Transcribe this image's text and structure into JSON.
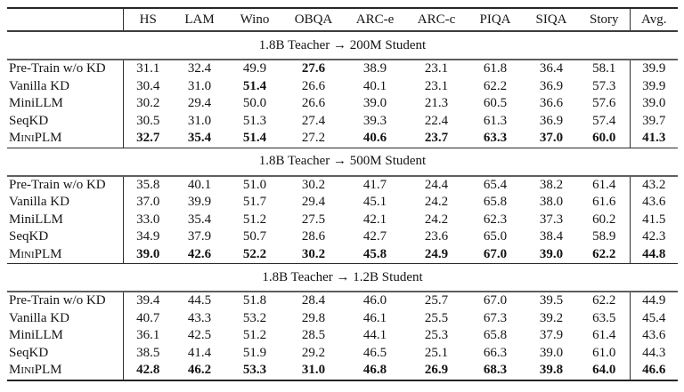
{
  "figure": {
    "kind": "results-table"
  },
  "colors": {
    "text": "#141414",
    "rule_outer": "#262626",
    "rule_header": "#3d3d3d",
    "rule_section_top": "#2b2b2b",
    "rule_section_bottom": "#5e5e5e",
    "vertical_bar": "#2f2f2f",
    "background": "#ffffff"
  },
  "table": {
    "columns": [
      "HS",
      "LAM",
      "Wino",
      "OBQA",
      "ARC-e",
      "ARC-c",
      "PIQA",
      "SIQA",
      "Story",
      "Avg."
    ],
    "sections": [
      {
        "title": "1.8B Teacher → 200M Student",
        "rows": [
          {
            "label": "Pre-Train w/o KD",
            "smallcaps": false,
            "values": [
              "31.1",
              "32.4",
              "49.9",
              "27.6",
              "38.9",
              "23.1",
              "61.8",
              "36.4",
              "58.1",
              "39.9"
            ],
            "bold": [
              false,
              false,
              false,
              true,
              false,
              false,
              false,
              false,
              false,
              false
            ]
          },
          {
            "label": "Vanilla KD",
            "smallcaps": false,
            "values": [
              "30.4",
              "31.0",
              "51.4",
              "26.6",
              "40.1",
              "23.1",
              "62.2",
              "36.9",
              "57.3",
              "39.9"
            ],
            "bold": [
              false,
              false,
              true,
              false,
              false,
              false,
              false,
              false,
              false,
              false
            ]
          },
          {
            "label": "MiniLLM",
            "smallcaps": false,
            "values": [
              "30.2",
              "29.4",
              "50.0",
              "26.6",
              "39.0",
              "21.3",
              "60.5",
              "36.6",
              "57.6",
              "39.0"
            ],
            "bold": [
              false,
              false,
              false,
              false,
              false,
              false,
              false,
              false,
              false,
              false
            ]
          },
          {
            "label": "SeqKD",
            "smallcaps": false,
            "values": [
              "30.5",
              "31.0",
              "51.3",
              "27.4",
              "39.3",
              "22.4",
              "61.3",
              "36.9",
              "57.4",
              "39.7"
            ],
            "bold": [
              false,
              false,
              false,
              false,
              false,
              false,
              false,
              false,
              false,
              false
            ]
          },
          {
            "label": "MiniPLM",
            "smallcaps": true,
            "values": [
              "32.7",
              "35.4",
              "51.4",
              "27.2",
              "40.6",
              "23.7",
              "63.3",
              "37.0",
              "60.0",
              "41.3"
            ],
            "bold": [
              true,
              true,
              true,
              false,
              true,
              true,
              true,
              true,
              true,
              true
            ]
          }
        ]
      },
      {
        "title": "1.8B Teacher → 500M Student",
        "rows": [
          {
            "label": "Pre-Train w/o KD",
            "smallcaps": false,
            "values": [
              "35.8",
              "40.1",
              "51.0",
              "30.2",
              "41.7",
              "24.4",
              "65.4",
              "38.2",
              "61.4",
              "43.2"
            ],
            "bold": [
              false,
              false,
              false,
              false,
              false,
              false,
              false,
              false,
              false,
              false
            ]
          },
          {
            "label": "Vanilla KD",
            "smallcaps": false,
            "values": [
              "37.0",
              "39.9",
              "51.7",
              "29.4",
              "45.1",
              "24.2",
              "65.8",
              "38.0",
              "61.6",
              "43.6"
            ],
            "bold": [
              false,
              false,
              false,
              false,
              false,
              false,
              false,
              false,
              false,
              false
            ]
          },
          {
            "label": "MiniLLM",
            "smallcaps": false,
            "values": [
              "33.0",
              "35.4",
              "51.2",
              "27.5",
              "42.1",
              "24.2",
              "62.3",
              "37.3",
              "60.2",
              "41.5"
            ],
            "bold": [
              false,
              false,
              false,
              false,
              false,
              false,
              false,
              false,
              false,
              false
            ]
          },
          {
            "label": "SeqKD",
            "smallcaps": false,
            "values": [
              "34.9",
              "37.9",
              "50.7",
              "28.6",
              "42.7",
              "23.6",
              "65.0",
              "38.4",
              "58.9",
              "42.3"
            ],
            "bold": [
              false,
              false,
              false,
              false,
              false,
              false,
              false,
              false,
              false,
              false
            ]
          },
          {
            "label": "MiniPLM",
            "smallcaps": true,
            "values": [
              "39.0",
              "42.6",
              "52.2",
              "30.2",
              "45.8",
              "24.9",
              "67.0",
              "39.0",
              "62.2",
              "44.8"
            ],
            "bold": [
              true,
              true,
              true,
              true,
              true,
              true,
              true,
              true,
              true,
              true
            ]
          }
        ]
      },
      {
        "title": "1.8B Teacher → 1.2B Student",
        "rows": [
          {
            "label": "Pre-Train w/o KD",
            "smallcaps": false,
            "values": [
              "39.4",
              "44.5",
              "51.8",
              "28.4",
              "46.0",
              "25.7",
              "67.0",
              "39.5",
              "62.2",
              "44.9"
            ],
            "bold": [
              false,
              false,
              false,
              false,
              false,
              false,
              false,
              false,
              false,
              false
            ]
          },
          {
            "label": "Vanilla KD",
            "smallcaps": false,
            "values": [
              "40.7",
              "43.3",
              "53.2",
              "29.8",
              "46.1",
              "25.5",
              "67.3",
              "39.2",
              "63.5",
              "45.4"
            ],
            "bold": [
              false,
              false,
              false,
              false,
              false,
              false,
              false,
              false,
              false,
              false
            ]
          },
          {
            "label": "MiniLLM",
            "smallcaps": false,
            "values": [
              "36.1",
              "42.5",
              "51.2",
              "28.5",
              "44.1",
              "25.3",
              "65.8",
              "37.9",
              "61.4",
              "43.6"
            ],
            "bold": [
              false,
              false,
              false,
              false,
              false,
              false,
              false,
              false,
              false,
              false
            ]
          },
          {
            "label": "SeqKD",
            "smallcaps": false,
            "values": [
              "38.5",
              "41.4",
              "51.9",
              "29.2",
              "46.5",
              "25.1",
              "66.3",
              "39.0",
              "61.0",
              "44.3"
            ],
            "bold": [
              false,
              false,
              false,
              false,
              false,
              false,
              false,
              false,
              false,
              false
            ]
          },
          {
            "label": "MiniPLM",
            "smallcaps": true,
            "values": [
              "42.8",
              "46.2",
              "53.3",
              "31.0",
              "46.8",
              "26.9",
              "68.3",
              "39.8",
              "64.0",
              "46.6"
            ],
            "bold": [
              true,
              true,
              true,
              true,
              true,
              true,
              true,
              true,
              true,
              true
            ]
          }
        ]
      }
    ]
  }
}
